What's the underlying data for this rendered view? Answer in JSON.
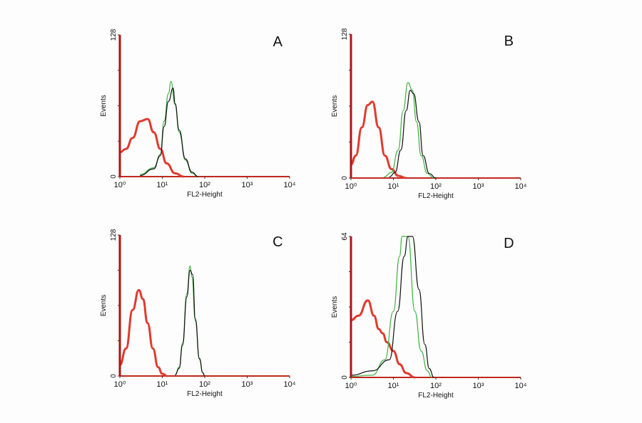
{
  "chart_data": [
    {
      "type": "line",
      "panel_label": "A",
      "xlabel": "FL2-Height",
      "ylabel": "Events",
      "x_scale": "log",
      "xlim": [
        1,
        10000
      ],
      "ylim": [
        0,
        128
      ],
      "x_ticks": [
        "10⁰",
        "10¹",
        "10²",
        "10³",
        "10⁴"
      ],
      "y_ticks": [
        "0",
        "128"
      ],
      "series": [
        {
          "color": "#e03a2f",
          "x": [
            1,
            1.4,
            2,
            3,
            4.5,
            6.3,
            9,
            12.6,
            20,
            32
          ],
          "y": [
            22,
            25,
            35,
            50,
            52,
            40,
            25,
            12,
            3,
            0
          ]
        },
        {
          "color": "#40b040",
          "x": [
            3,
            6.3,
            9,
            11,
            14,
            16,
            20,
            25,
            35,
            50,
            70
          ],
          "y": [
            2,
            8,
            20,
            50,
            75,
            86,
            65,
            40,
            15,
            3,
            0
          ]
        },
        {
          "color": "#111111",
          "x": [
            3,
            6.3,
            9,
            11,
            14,
            18,
            20,
            25,
            35,
            50,
            70
          ],
          "y": [
            1,
            7,
            19,
            45,
            68,
            80,
            66,
            42,
            16,
            4,
            0
          ]
        }
      ]
    },
    {
      "type": "line",
      "panel_label": "B",
      "xlabel": "FL2-Height",
      "ylabel": "Events",
      "x_scale": "log",
      "xlim": [
        1,
        10000
      ],
      "ylim": [
        0,
        128
      ],
      "x_ticks": [
        "10⁰",
        "10¹",
        "10²",
        "10³",
        "10⁴"
      ],
      "y_ticks": [
        "0",
        "128"
      ],
      "series": [
        {
          "color": "#e03a2f",
          "x": [
            1,
            1.3,
            1.8,
            2.5,
            3.2,
            4.5,
            6.3,
            9,
            13,
            20
          ],
          "y": [
            12,
            20,
            45,
            65,
            68,
            45,
            20,
            8,
            2,
            0
          ]
        },
        {
          "color": "#40b040",
          "x": [
            6,
            9,
            13,
            17,
            22,
            28,
            35,
            45,
            63,
            90
          ],
          "y": [
            1,
            5,
            25,
            60,
            85,
            78,
            50,
            20,
            4,
            0
          ]
        },
        {
          "color": "#111111",
          "x": [
            8,
            11,
            15,
            20,
            25,
            30,
            40,
            50,
            70,
            100
          ],
          "y": [
            1,
            5,
            25,
            60,
            78,
            75,
            50,
            20,
            4,
            0
          ]
        }
      ]
    },
    {
      "type": "line",
      "panel_label": "C",
      "xlabel": "FL2-Height",
      "ylabel": "Events",
      "x_scale": "log",
      "xlim": [
        1,
        10000
      ],
      "ylim": [
        0,
        128
      ],
      "x_ticks": [
        "10⁰",
        "10¹",
        "10²",
        "10³",
        "10⁴"
      ],
      "y_ticks": [
        "0",
        "128"
      ],
      "series": [
        {
          "color": "#e03a2f",
          "x": [
            1,
            1.4,
            2,
            2.8,
            3.5,
            4.5,
            6,
            8,
            10,
            13
          ],
          "y": [
            10,
            25,
            60,
            78,
            70,
            48,
            25,
            8,
            2,
            0
          ]
        },
        {
          "color": "#40b040",
          "x": [
            20,
            25,
            30,
            38,
            45,
            50,
            60,
            75,
            90,
            100
          ],
          "y": [
            1,
            8,
            30,
            75,
            100,
            90,
            50,
            15,
            3,
            0
          ]
        },
        {
          "color": "#111111",
          "x": [
            20,
            25,
            30,
            38,
            45,
            52,
            60,
            75,
            90,
            100
          ],
          "y": [
            1,
            7,
            28,
            72,
            96,
            92,
            52,
            16,
            3,
            0
          ]
        }
      ]
    },
    {
      "type": "line",
      "panel_label": "D",
      "xlabel": "FL2-Height",
      "ylabel": "Events",
      "x_scale": "log",
      "xlim": [
        1,
        10000
      ],
      "ylim": [
        0,
        64
      ],
      "x_ticks": [
        "10⁰",
        "10¹",
        "10²",
        "10³",
        "10⁴"
      ],
      "y_ticks": [
        "0",
        "64"
      ],
      "series": [
        {
          "color": "#e03a2f",
          "x": [
            1,
            1.5,
            2.5,
            3.5,
            4.5,
            5.6,
            7,
            10,
            14,
            20,
            32
          ],
          "y": [
            26,
            28,
            35,
            28,
            22,
            20,
            16,
            12,
            6,
            2,
            0
          ]
        },
        {
          "color": "#40b040",
          "x": [
            1,
            3.2,
            6.3,
            10,
            14,
            16,
            22,
            32,
            45,
            63,
            80
          ],
          "y": [
            0.5,
            1,
            8,
            30,
            55,
            64,
            64,
            30,
            12,
            3,
            0
          ]
        },
        {
          "color": "#111111",
          "x": [
            1,
            3.2,
            8,
            12.6,
            18,
            22,
            28,
            40,
            55,
            70,
            90
          ],
          "y": [
            1,
            3,
            8,
            30,
            55,
            64,
            64,
            40,
            15,
            4,
            0
          ]
        }
      ]
    }
  ]
}
